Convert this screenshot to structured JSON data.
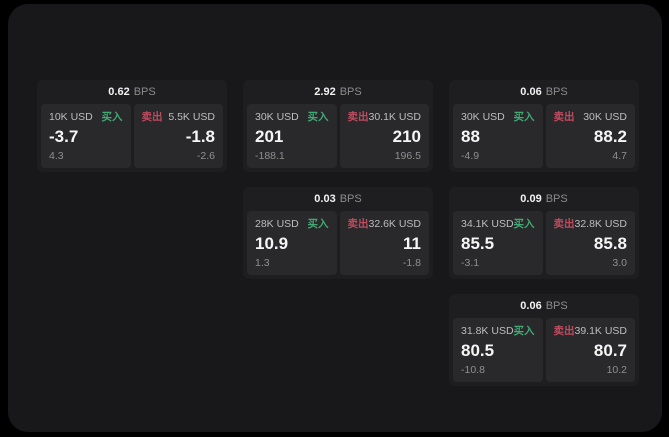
{
  "labels": {
    "bps_unit": "BPS",
    "buy": "买入",
    "sell": "卖出"
  },
  "colors": {
    "surface": "#18181a",
    "card": "#1e1e20",
    "panel": "#29292c",
    "buy": "#42a874",
    "sell": "#bf4b5e"
  },
  "cards": [
    {
      "bps": "0.62",
      "buy": {
        "size": "10K USD",
        "value": "-3.7",
        "sub": "4.3"
      },
      "sell": {
        "size": "5.5K USD",
        "value": "-1.8",
        "sub": "-2.6"
      }
    },
    {
      "bps": "2.92",
      "buy": {
        "size": "30K USD",
        "value": "201",
        "sub": "-188.1"
      },
      "sell": {
        "size": "30.1K USD",
        "value": "210",
        "sub": "196.5"
      }
    },
    {
      "bps": "0.06",
      "buy": {
        "size": "30K USD",
        "value": "88",
        "sub": "-4.9"
      },
      "sell": {
        "size": "30K USD",
        "value": "88.2",
        "sub": "4.7"
      }
    },
    {
      "bps": "0.03",
      "buy": {
        "size": "28K USD",
        "value": "10.9",
        "sub": "1.3"
      },
      "sell": {
        "size": "32.6K USD",
        "value": "11",
        "sub": "-1.8"
      }
    },
    {
      "bps": "0.09",
      "buy": {
        "size": "34.1K USD",
        "value": "85.5",
        "sub": "-3.1"
      },
      "sell": {
        "size": "32.8K USD",
        "value": "85.8",
        "sub": "3.0"
      }
    },
    {
      "bps": "0.06",
      "buy": {
        "size": "31.8K USD",
        "value": "80.5",
        "sub": "-10.8"
      },
      "sell": {
        "size": "39.1K USD",
        "value": "80.7",
        "sub": "10.2"
      }
    }
  ]
}
